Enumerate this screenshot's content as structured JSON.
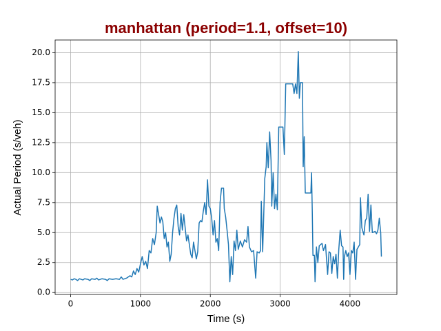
{
  "chart_data": {
    "type": "line",
    "title": "manhattan (period=1.1, offset=10)",
    "title_color": "#8b0000",
    "xlabel": "Time (s)",
    "ylabel": "Actual Period (s/veh)",
    "color": "#1f77b4",
    "grid": true,
    "xlim": [
      -222,
      4672
    ],
    "ylim": [
      -0.16,
      21.06
    ],
    "xticks": [
      0,
      1000,
      2000,
      3000,
      4000
    ],
    "yticks": [
      {
        "value": 0,
        "label": "0.0"
      },
      {
        "value": 2.5,
        "label": "2.5"
      },
      {
        "value": 5,
        "label": "5.0"
      },
      {
        "value": 7.5,
        "label": "7.5"
      },
      {
        "value": 10,
        "label": "10.0"
      },
      {
        "value": 12.5,
        "label": "12.5"
      },
      {
        "value": 15,
        "label": "15.0"
      },
      {
        "value": 17.5,
        "label": "17.5"
      },
      {
        "value": 20,
        "label": "20.0"
      }
    ],
    "x": [
      0,
      25,
      50,
      75,
      100,
      125,
      150,
      175,
      200,
      250,
      275,
      300,
      350,
      375,
      400,
      450,
      500,
      525,
      550,
      600,
      650,
      700,
      725,
      750,
      800,
      850,
      875,
      900,
      925,
      950,
      975,
      1000,
      1025,
      1050,
      1075,
      1100,
      1125,
      1150,
      1175,
      1200,
      1225,
      1240,
      1260,
      1280,
      1300,
      1320,
      1340,
      1360,
      1380,
      1400,
      1420,
      1440,
      1460,
      1480,
      1500,
      1520,
      1540,
      1560,
      1580,
      1600,
      1620,
      1640,
      1660,
      1680,
      1700,
      1720,
      1740,
      1760,
      1780,
      1800,
      1820,
      1840,
      1860,
      1880,
      1900,
      1920,
      1940,
      1960,
      1980,
      2000,
      2020,
      2040,
      2060,
      2080,
      2100,
      2120,
      2140,
      2160,
      2190,
      2200,
      2220,
      2240,
      2260,
      2280,
      2300,
      2320,
      2340,
      2360,
      2380,
      2400,
      2430,
      2460,
      2490,
      2520,
      2540,
      2560,
      2590,
      2620,
      2650,
      2670,
      2700,
      2720,
      2730,
      2750,
      2780,
      2800,
      2810,
      2830,
      2850,
      2870,
      2880,
      2900,
      2920,
      2940,
      2960,
      2980,
      3040,
      3060,
      3080,
      3180,
      3200,
      3220,
      3240,
      3260,
      3275,
      3290,
      3320,
      3330,
      3345,
      3360,
      3420,
      3440,
      3450,
      3460,
      3470,
      3490,
      3500,
      3520,
      3540,
      3560,
      3600,
      3620,
      3650,
      3680,
      3700,
      3720,
      3740,
      3760,
      3780,
      3800,
      3820,
      3840,
      3860,
      3880,
      3900,
      3910,
      3920,
      3940,
      3960,
      3980,
      4000,
      4020,
      4040,
      4060,
      4080,
      4100,
      4140,
      4150,
      4170,
      4200,
      4220,
      4240,
      4260,
      4280,
      4300,
      4320,
      4360,
      4380,
      4400,
      4420,
      4440,
      4450
    ],
    "values": [
      1.1,
      1.05,
      1.15,
      1.1,
      1.0,
      1.15,
      1.1,
      1.05,
      1.15,
      1.1,
      1.0,
      1.15,
      1.1,
      1.2,
      1.05,
      1.15,
      1.1,
      1.0,
      1.15,
      1.1,
      1.15,
      1.1,
      1.3,
      1.1,
      1.2,
      1.4,
      1.3,
      1.8,
      1.5,
      2.0,
      1.7,
      2.4,
      3.0,
      2.3,
      2.6,
      2.0,
      3.5,
      3.3,
      4.5,
      4.0,
      5.0,
      7.2,
      6.5,
      5.8,
      6.3,
      5.9,
      4.5,
      5.0,
      3.8,
      4.2,
      2.6,
      3.2,
      5.0,
      6.2,
      7.0,
      7.3,
      5.5,
      4.8,
      6.6,
      5.2,
      6.5,
      5.4,
      4.3,
      4.8,
      4.0,
      3.2,
      2.9,
      4.2,
      3.5,
      2.8,
      3.4,
      5.8,
      6.0,
      5.9,
      6.8,
      7.5,
      6.5,
      9.4,
      7.2,
      7.0,
      6.2,
      4.8,
      6.0,
      4.2,
      4.5,
      3.5,
      7.5,
      8.7,
      8.7,
      7.0,
      6.3,
      5.2,
      4.0,
      0.9,
      3.0,
      1.5,
      4.3,
      3.5,
      5.2,
      3.6,
      4.3,
      3.8,
      4.4,
      4.2,
      5.5,
      3.8,
      3.4,
      3.5,
      1.2,
      3.4,
      3.3,
      3.5,
      7.6,
      3.4,
      9.5,
      10.5,
      12.5,
      10.4,
      13.4,
      11.0,
      7.2,
      10.0,
      7.0,
      8.2,
      6.9,
      13.8,
      13.8,
      11.5,
      17.4,
      17.4,
      16.6,
      17.4,
      16.6,
      20.1,
      16.2,
      17.5,
      17.5,
      10.5,
      13.0,
      8.3,
      8.3,
      8.3,
      10.0,
      6.8,
      3.1,
      3.1,
      0.9,
      3.8,
      2.5,
      3.9,
      4.1,
      3.5,
      4.0,
      1.5,
      3.4,
      3.3,
      1.6,
      3.0,
      2.4,
      3.2,
      1.2,
      3.6,
      5.2,
      3.9,
      3.8,
      1.1,
      3.0,
      3.5,
      3.0,
      3.3,
      1.5,
      3.5,
      3.3,
      4.2,
      1.1,
      3.6,
      4.0,
      7.9,
      5.4,
      4.8,
      6.0,
      6.2,
      8.2,
      5.1,
      7.3,
      5.0,
      5.1,
      4.9,
      5.2,
      6.2,
      5.0,
      3.0
    ]
  }
}
